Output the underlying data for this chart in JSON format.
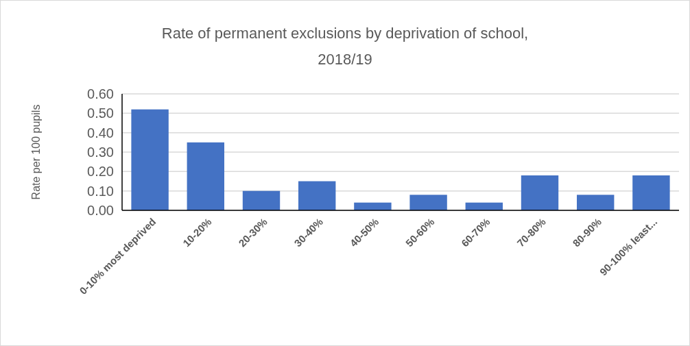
{
  "chart_data": {
    "type": "bar",
    "title": "Rate of permanent exclusions by deprivation of school, 2018/19",
    "ylabel": "Rate per 100 pupils",
    "categories": [
      "0-10% most deprived",
      "10-20%",
      "20-30%",
      "30-40%",
      "40-50%",
      "50-60%",
      "60-70%",
      "70-80%",
      "80-90%",
      "90-100% least..."
    ],
    "values": [
      0.52,
      0.35,
      0.1,
      0.15,
      0.04,
      0.08,
      0.04,
      0.18,
      0.08,
      0.18
    ],
    "color": "#4472c4",
    "ylim": [
      0,
      0.6
    ],
    "yticks": [
      {
        "value": 0,
        "label": "0.00"
      },
      {
        "value": 0.1,
        "label": "0.10"
      },
      {
        "value": 0.2,
        "label": "0.20"
      },
      {
        "value": 0.3,
        "label": "0.30"
      },
      {
        "value": 0.4,
        "label": "0.40"
      },
      {
        "value": 0.5,
        "label": "0.50"
      },
      {
        "value": 0.6,
        "label": "0.60"
      }
    ],
    "grid": "y"
  }
}
